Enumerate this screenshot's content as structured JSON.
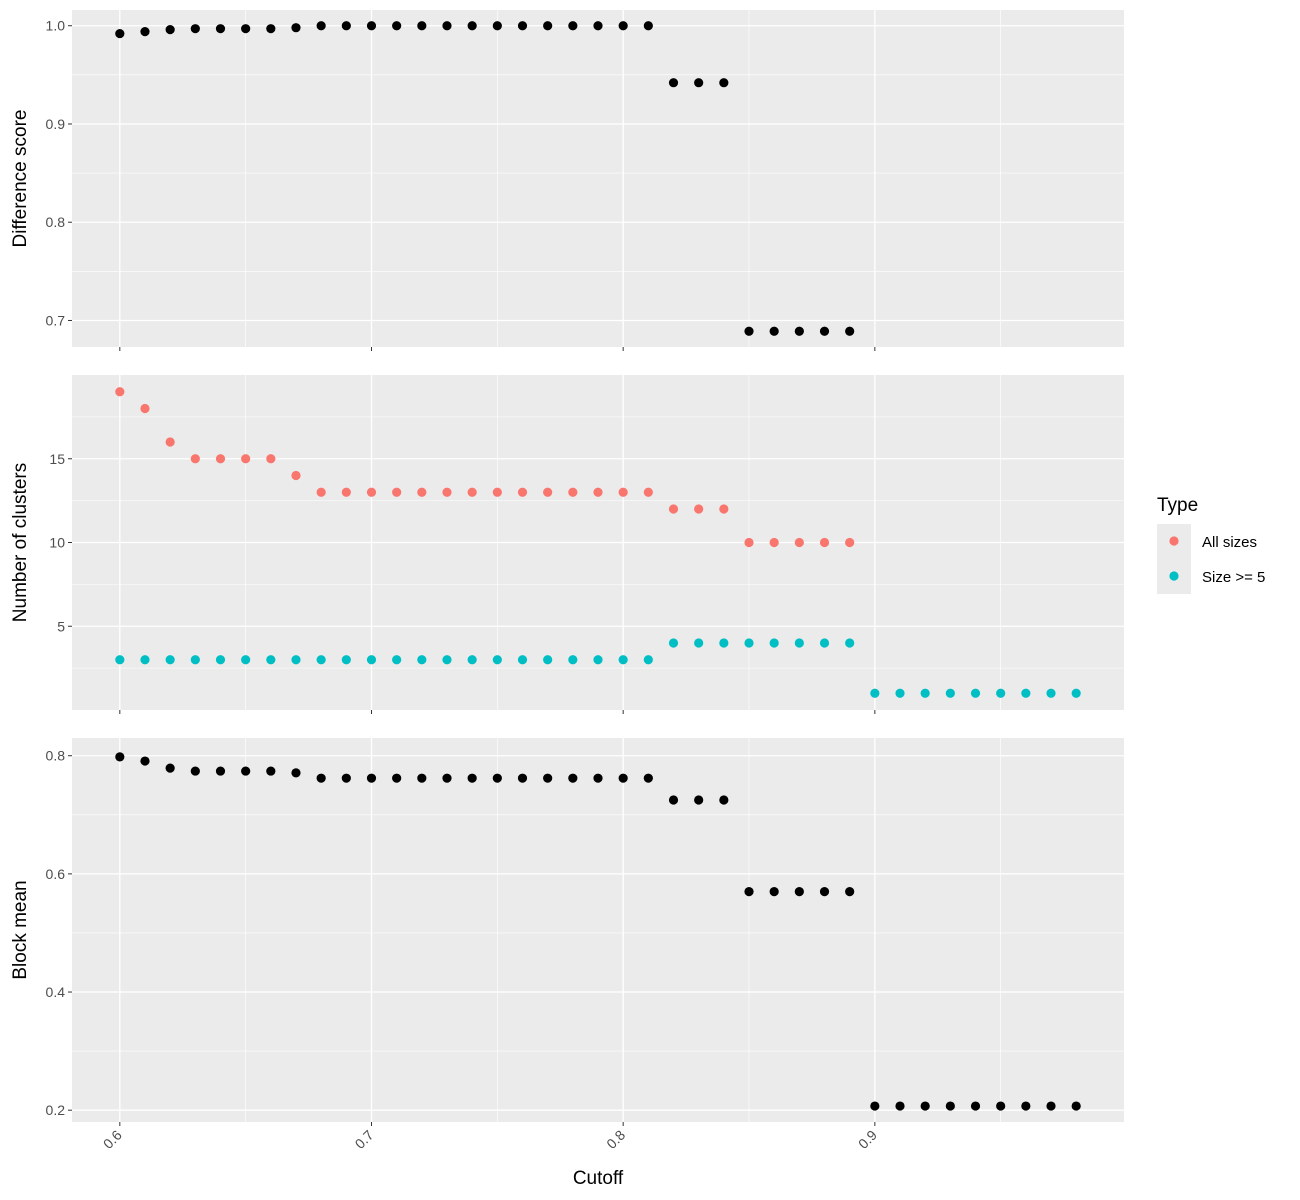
{
  "chart_data": {
    "type": "scatter",
    "xlabel": "Cutoff",
    "x_ticks": [
      0.6,
      0.7,
      0.8,
      0.9
    ],
    "x_tick_labels": [
      "0.6",
      "0.7",
      "0.8",
      "0.9"
    ],
    "xlim": [
      0.581,
      0.999
    ],
    "grid": true,
    "legend": {
      "title": "Type",
      "placement": "right",
      "entries": [
        {
          "label": "All sizes",
          "color": "#F8766D"
        },
        {
          "label": "Size >= 5",
          "color": "#00BFC4"
        }
      ]
    },
    "panels": [
      {
        "ylabel": "Difference score",
        "ylim": [
          0.673,
          1.016
        ],
        "y_ticks": [
          0.7,
          0.8,
          0.9,
          1.0
        ],
        "y_tick_labels": [
          "0.7",
          "0.8",
          "0.9",
          "1.0"
        ],
        "y_minor_ticks": [
          0.75,
          0.85,
          0.95
        ],
        "series": [
          {
            "color": "#000000",
            "x": [
              0.6,
              0.61,
              0.62,
              0.63,
              0.64,
              0.65,
              0.66,
              0.67,
              0.68,
              0.69,
              0.7,
              0.71,
              0.72,
              0.73,
              0.74,
              0.75,
              0.76,
              0.77,
              0.78,
              0.79,
              0.8,
              0.81,
              0.82,
              0.83,
              0.84,
              0.85,
              0.86,
              0.87,
              0.88,
              0.89
            ],
            "y": [
              0.992,
              0.994,
              0.996,
              0.997,
              0.997,
              0.997,
              0.997,
              0.998,
              1.0,
              1.0,
              1.0,
              1.0,
              1.0,
              1.0,
              1.0,
              1.0,
              1.0,
              1.0,
              1.0,
              1.0,
              1.0,
              1.0,
              0.942,
              0.942,
              0.942,
              0.689,
              0.689,
              0.689,
              0.689,
              0.689
            ]
          }
        ]
      },
      {
        "ylabel": "Number of clusters",
        "ylim": [
          0,
          20
        ],
        "y_ticks": [
          5,
          10,
          15
        ],
        "y_tick_labels": [
          "5",
          "10",
          "15"
        ],
        "y_minor_ticks": [
          2.5,
          7.5,
          12.5,
          17.5
        ],
        "series": [
          {
            "name": "All sizes",
            "color": "#F8766D",
            "x": [
              0.6,
              0.61,
              0.62,
              0.63,
              0.64,
              0.65,
              0.66,
              0.67,
              0.68,
              0.69,
              0.7,
              0.71,
              0.72,
              0.73,
              0.74,
              0.75,
              0.76,
              0.77,
              0.78,
              0.79,
              0.8,
              0.81,
              0.82,
              0.83,
              0.84,
              0.85,
              0.86,
              0.87,
              0.88,
              0.89
            ],
            "y": [
              19,
              18,
              16,
              15,
              15,
              15,
              15,
              14,
              13,
              13,
              13,
              13,
              13,
              13,
              13,
              13,
              13,
              13,
              13,
              13,
              13,
              13,
              12,
              12,
              12,
              10,
              10,
              10,
              10,
              10
            ]
          },
          {
            "name": "Size >= 5",
            "color": "#00BFC4",
            "x": [
              0.6,
              0.61,
              0.62,
              0.63,
              0.64,
              0.65,
              0.66,
              0.67,
              0.68,
              0.69,
              0.7,
              0.71,
              0.72,
              0.73,
              0.74,
              0.75,
              0.76,
              0.77,
              0.78,
              0.79,
              0.8,
              0.81,
              0.82,
              0.83,
              0.84,
              0.85,
              0.86,
              0.87,
              0.88,
              0.89,
              0.9,
              0.91,
              0.92,
              0.93,
              0.94,
              0.95,
              0.96,
              0.97,
              0.98
            ],
            "y": [
              3,
              3,
              3,
              3,
              3,
              3,
              3,
              3,
              3,
              3,
              3,
              3,
              3,
              3,
              3,
              3,
              3,
              3,
              3,
              3,
              3,
              3,
              4,
              4,
              4,
              4,
              4,
              4,
              4,
              4,
              1,
              1,
              1,
              1,
              1,
              1,
              1,
              1,
              1
            ]
          }
        ]
      },
      {
        "ylabel": "Block mean",
        "ylim": [
          0.18,
          0.83
        ],
        "y_ticks": [
          0.2,
          0.4,
          0.6,
          0.8
        ],
        "y_tick_labels": [
          "0.2",
          "0.4",
          "0.6",
          "0.8"
        ],
        "y_minor_ticks": [
          0.3,
          0.5,
          0.7
        ],
        "series": [
          {
            "color": "#000000",
            "x": [
              0.6,
              0.61,
              0.62,
              0.63,
              0.64,
              0.65,
              0.66,
              0.67,
              0.68,
              0.69,
              0.7,
              0.71,
              0.72,
              0.73,
              0.74,
              0.75,
              0.76,
              0.77,
              0.78,
              0.79,
              0.8,
              0.81,
              0.82,
              0.83,
              0.84,
              0.85,
              0.86,
              0.87,
              0.88,
              0.89,
              0.9,
              0.91,
              0.92,
              0.93,
              0.94,
              0.95,
              0.96,
              0.97,
              0.98
            ],
            "y": [
              0.798,
              0.791,
              0.779,
              0.774,
              0.774,
              0.774,
              0.774,
              0.771,
              0.762,
              0.762,
              0.762,
              0.762,
              0.762,
              0.762,
              0.762,
              0.762,
              0.762,
              0.762,
              0.762,
              0.762,
              0.762,
              0.762,
              0.725,
              0.725,
              0.725,
              0.57,
              0.57,
              0.57,
              0.57,
              0.57,
              0.207,
              0.207,
              0.207,
              0.207,
              0.207,
              0.207,
              0.207,
              0.207,
              0.207
            ]
          }
        ]
      }
    ]
  }
}
